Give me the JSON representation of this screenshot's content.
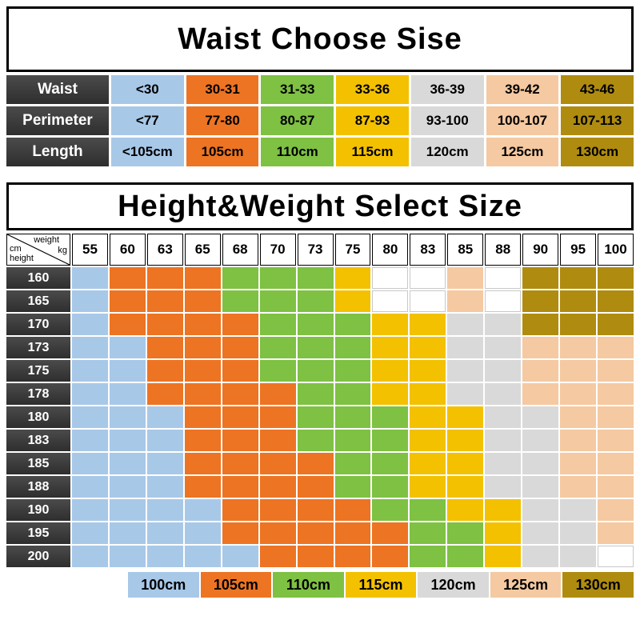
{
  "palette": {
    "blue": "#A8C8E8",
    "orange": "#ED7423",
    "green": "#7EC143",
    "yellow": "#F3C100",
    "gray": "#D9D9D9",
    "peach": "#F5C9A1",
    "gold": "#AF8C0F",
    "header_dark": "#3B3B3B",
    "text_dark": "#000000",
    "text_light": "#FFFFFF"
  },
  "size_table": {
    "corner": {
      "top_label": "weight",
      "top_unit": "kg",
      "bottom_unit": "cm",
      "bottom_label": "height"
    }
  },
  "chart_data": [
    {
      "type": "table",
      "title": "Waist Choose Sise",
      "column_colors": [
        "blue",
        "orange",
        "green",
        "yellow",
        "gray",
        "peach",
        "gold"
      ],
      "rows": [
        {
          "label": "Waist",
          "values": [
            "<30",
            "30-31",
            "31-33",
            "33-36",
            "36-39",
            "39-42",
            "43-46"
          ]
        },
        {
          "label": "Perimeter",
          "values": [
            "<77",
            "77-80",
            "80-87",
            "87-93",
            "93-100",
            "100-107",
            "107-113"
          ]
        },
        {
          "label": "Length",
          "values": [
            "<105cm",
            "105cm",
            "110cm",
            "115cm",
            "120cm",
            "125cm",
            "130cm"
          ]
        }
      ]
    },
    {
      "type": "heatmap",
      "title": "Height&Weight Select Size",
      "x_title": "weight kg",
      "y_title": "height cm",
      "x": [
        "55",
        "60",
        "63",
        "65",
        "68",
        "70",
        "73",
        "75",
        "80",
        "83",
        "85",
        "88",
        "90",
        "95",
        "100"
      ],
      "y": [
        "160",
        "165",
        "170",
        "173",
        "175",
        "178",
        "180",
        "183",
        "185",
        "188",
        "190",
        "195",
        "200"
      ],
      "legend": [
        {
          "label": "100cm",
          "color": "blue"
        },
        {
          "label": "105cm",
          "color": "orange"
        },
        {
          "label": "110cm",
          "color": "green"
        },
        {
          "label": "115cm",
          "color": "yellow"
        },
        {
          "label": "120cm",
          "color": "gray"
        },
        {
          "label": "125cm",
          "color": "peach"
        },
        {
          "label": "130cm",
          "color": "gold"
        }
      ],
      "values": [
        [
          "100cm",
          "105cm",
          "105cm",
          "105cm",
          "110cm",
          "110cm",
          "110cm",
          "115cm",
          "",
          "",
          "125cm",
          "",
          "130cm",
          "130cm",
          "130cm"
        ],
        [
          "100cm",
          "105cm",
          "105cm",
          "105cm",
          "110cm",
          "110cm",
          "110cm",
          "115cm",
          "",
          "",
          "125cm",
          "",
          "130cm",
          "130cm",
          "130cm"
        ],
        [
          "100cm",
          "105cm",
          "105cm",
          "105cm",
          "105cm",
          "110cm",
          "110cm",
          "110cm",
          "115cm",
          "115cm",
          "120cm",
          "120cm",
          "130cm",
          "130cm",
          "130cm"
        ],
        [
          "100cm",
          "100cm",
          "105cm",
          "105cm",
          "105cm",
          "110cm",
          "110cm",
          "110cm",
          "115cm",
          "115cm",
          "120cm",
          "120cm",
          "125cm",
          "125cm",
          "125cm"
        ],
        [
          "100cm",
          "100cm",
          "105cm",
          "105cm",
          "105cm",
          "110cm",
          "110cm",
          "110cm",
          "115cm",
          "115cm",
          "120cm",
          "120cm",
          "125cm",
          "125cm",
          "125cm"
        ],
        [
          "100cm",
          "100cm",
          "105cm",
          "105cm",
          "105cm",
          "105cm",
          "110cm",
          "110cm",
          "115cm",
          "115cm",
          "120cm",
          "120cm",
          "125cm",
          "125cm",
          "125cm"
        ],
        [
          "100cm",
          "100cm",
          "100cm",
          "105cm",
          "105cm",
          "105cm",
          "110cm",
          "110cm",
          "110cm",
          "115cm",
          "115cm",
          "120cm",
          "120cm",
          "125cm",
          "125cm"
        ],
        [
          "100cm",
          "100cm",
          "100cm",
          "105cm",
          "105cm",
          "105cm",
          "110cm",
          "110cm",
          "110cm",
          "115cm",
          "115cm",
          "120cm",
          "120cm",
          "125cm",
          "125cm"
        ],
        [
          "100cm",
          "100cm",
          "100cm",
          "105cm",
          "105cm",
          "105cm",
          "105cm",
          "110cm",
          "110cm",
          "115cm",
          "115cm",
          "120cm",
          "120cm",
          "125cm",
          "125cm"
        ],
        [
          "100cm",
          "100cm",
          "100cm",
          "105cm",
          "105cm",
          "105cm",
          "105cm",
          "110cm",
          "110cm",
          "115cm",
          "115cm",
          "120cm",
          "120cm",
          "125cm",
          "125cm"
        ],
        [
          "100cm",
          "100cm",
          "100cm",
          "100cm",
          "105cm",
          "105cm",
          "105cm",
          "105cm",
          "110cm",
          "110cm",
          "115cm",
          "115cm",
          "120cm",
          "120cm",
          "125cm"
        ],
        [
          "100cm",
          "100cm",
          "100cm",
          "100cm",
          "105cm",
          "105cm",
          "105cm",
          "105cm",
          "105cm",
          "110cm",
          "110cm",
          "115cm",
          "120cm",
          "120cm",
          "125cm"
        ],
        [
          "100cm",
          "100cm",
          "100cm",
          "100cm",
          "100cm",
          "105cm",
          "105cm",
          "105cm",
          "105cm",
          "110cm",
          "110cm",
          "115cm",
          "120cm",
          "120cm",
          ""
        ]
      ]
    }
  ]
}
